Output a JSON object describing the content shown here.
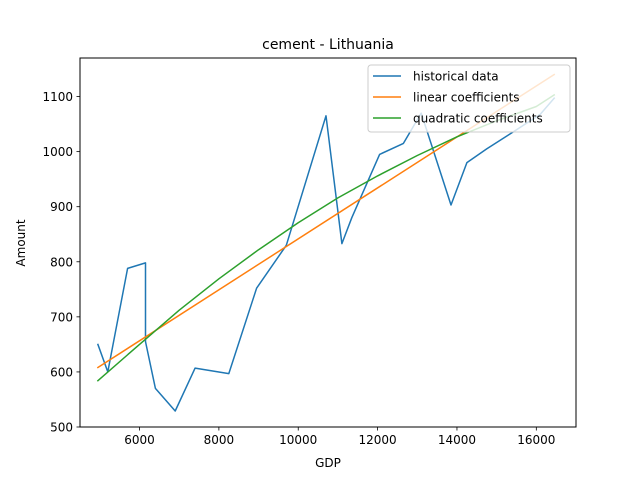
{
  "chart_data": {
    "type": "line",
    "title": "cement - Lithuania",
    "xlabel": "GDP",
    "ylabel": "Amount",
    "xlim": [
      4500,
      17000
    ],
    "ylim": [
      500,
      1170
    ],
    "xticks": [
      6000,
      8000,
      10000,
      12000,
      14000,
      16000
    ],
    "yticks": [
      500,
      600,
      700,
      800,
      900,
      1000,
      1100
    ],
    "grid": false,
    "legend": "top-right",
    "series": [
      {
        "name": "historical data",
        "color": "#1f77b4",
        "points": [
          [
            4950,
            650
          ],
          [
            5200,
            600
          ],
          [
            5700,
            788
          ],
          [
            6150,
            798
          ],
          [
            6150,
            655
          ],
          [
            6400,
            570
          ],
          [
            6900,
            529
          ],
          [
            7400,
            607
          ],
          [
            8250,
            597
          ],
          [
            8950,
            752
          ],
          [
            9700,
            830
          ],
          [
            10700,
            1065
          ],
          [
            11100,
            833
          ],
          [
            11350,
            880
          ],
          [
            12050,
            995
          ],
          [
            12650,
            1015
          ],
          [
            13100,
            1070
          ],
          [
            13850,
            903
          ],
          [
            14250,
            980
          ],
          [
            14750,
            1005
          ],
          [
            15400,
            1035
          ],
          [
            16100,
            1068
          ],
          [
            16450,
            1097
          ]
        ]
      },
      {
        "name": "linear coefficients",
        "color": "#ff7f0e",
        "points": [
          [
            4950,
            608
          ],
          [
            16450,
            1140
          ]
        ]
      },
      {
        "name": "quadratic coefficients",
        "color": "#2ca02c",
        "points": [
          [
            4950,
            584
          ],
          [
            6000,
            650
          ],
          [
            7000,
            712
          ],
          [
            8000,
            769
          ],
          [
            9000,
            822
          ],
          [
            10000,
            871
          ],
          [
            11000,
            916
          ],
          [
            12000,
            956
          ],
          [
            13000,
            993
          ],
          [
            14000,
            1027
          ],
          [
            15000,
            1056
          ],
          [
            16000,
            1082
          ],
          [
            16450,
            1103
          ]
        ]
      }
    ]
  }
}
